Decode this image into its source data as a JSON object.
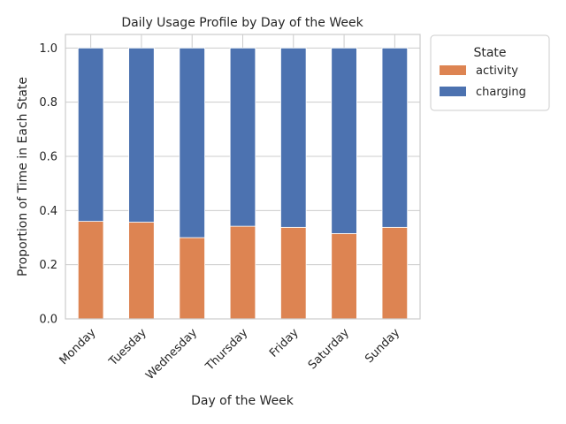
{
  "chart_data": {
    "type": "bar",
    "stacked": true,
    "title": "Daily Usage Profile by Day of the Week",
    "xlabel": "Day of the Week",
    "ylabel": "Proportion of Time in Each State",
    "categories": [
      "Monday",
      "Tuesday",
      "Wednesday",
      "Thursday",
      "Friday",
      "Saturday",
      "Sunday"
    ],
    "series": [
      {
        "name": "activity",
        "color": "#dd8452",
        "values": [
          0.36,
          0.357,
          0.3,
          0.342,
          0.338,
          0.315,
          0.338
        ]
      },
      {
        "name": "charging",
        "color": "#4c72b0",
        "values": [
          0.64,
          0.643,
          0.7,
          0.658,
          0.662,
          0.685,
          0.662
        ]
      }
    ],
    "ylim": [
      0,
      1.05
    ],
    "yticks": [
      "0.0",
      "0.2",
      "0.4",
      "0.6",
      "0.8",
      "1.0"
    ],
    "grid": true,
    "legend": {
      "title": "State",
      "placement": "outside-top-right"
    }
  }
}
